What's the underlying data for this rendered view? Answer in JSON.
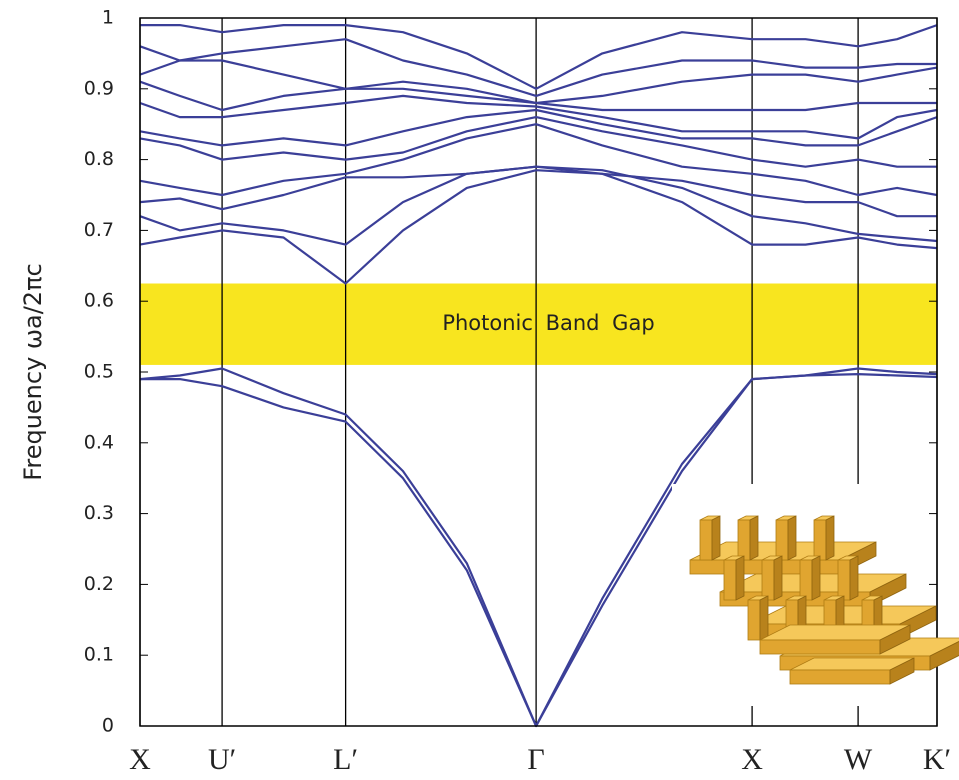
{
  "chart_data": {
    "type": "line",
    "ylabel": "Frequency ωa/2πc",
    "x": [
      0,
      0.05,
      0.103,
      0.18,
      0.258,
      0.33,
      0.41,
      0.497,
      0.58,
      0.68,
      0.768,
      0.835,
      0.901,
      0.95,
      1
    ],
    "xlim": [
      0,
      1
    ],
    "xticks": [
      {
        "value": 0,
        "label": "X"
      },
      {
        "value": 0.103,
        "label": "U′"
      },
      {
        "value": 0.258,
        "label": "L′"
      },
      {
        "value": 0.497,
        "label": "Γ"
      },
      {
        "value": 0.768,
        "label": "X"
      },
      {
        "value": 0.901,
        "label": "W"
      },
      {
        "value": 1,
        "label": "K′"
      }
    ],
    "ylim": [
      0,
      1
    ],
    "yticks": [
      0,
      0.1,
      0.2,
      0.3,
      0.4,
      0.5,
      0.6,
      0.7,
      0.8,
      0.9,
      1
    ],
    "xgrid": true,
    "color": "#3b3f98",
    "band_gap": {
      "range": [
        0.51,
        0.625
      ],
      "label": "Photonic Band Gap",
      "color": "#f8e51f"
    },
    "series": [
      {
        "values": [
          0.49,
          0.49,
          0.48,
          0.45,
          0.43,
          0.35,
          0.22,
          0,
          0.17,
          0.36,
          0.49,
          0.495,
          0.497,
          0.495,
          0.493
        ]
      },
      {
        "values": [
          0.49,
          0.495,
          0.505,
          0.47,
          0.44,
          0.36,
          0.23,
          0,
          0.18,
          0.37,
          0.49,
          0.495,
          0.505,
          0.5,
          0.497
        ]
      },
      {
        "values": [
          0.68,
          0.69,
          0.7,
          0.69,
          0.625,
          0.7,
          0.76,
          0.785,
          0.78,
          0.74,
          0.68,
          0.68,
          0.69,
          0.68,
          0.675
        ]
      },
      {
        "values": [
          0.72,
          0.7,
          0.71,
          0.7,
          0.68,
          0.74,
          0.78,
          0.79,
          0.785,
          0.76,
          0.72,
          0.71,
          0.695,
          0.69,
          0.685
        ]
      },
      {
        "values": [
          0.74,
          0.745,
          0.73,
          0.75,
          0.775,
          0.775,
          0.78,
          0.79,
          0.78,
          0.77,
          0.75,
          0.74,
          0.74,
          0.72,
          0.72
        ]
      },
      {
        "values": [
          0.77,
          0.76,
          0.75,
          0.77,
          0.78,
          0.8,
          0.83,
          0.85,
          0.82,
          0.79,
          0.78,
          0.77,
          0.75,
          0.76,
          0.75
        ]
      },
      {
        "values": [
          0.83,
          0.82,
          0.8,
          0.81,
          0.8,
          0.81,
          0.84,
          0.86,
          0.84,
          0.82,
          0.8,
          0.79,
          0.8,
          0.79,
          0.79
        ]
      },
      {
        "values": [
          0.84,
          0.83,
          0.82,
          0.83,
          0.82,
          0.84,
          0.86,
          0.87,
          0.85,
          0.83,
          0.83,
          0.82,
          0.82,
          0.84,
          0.86
        ]
      },
      {
        "values": [
          0.88,
          0.86,
          0.86,
          0.87,
          0.88,
          0.89,
          0.88,
          0.875,
          0.86,
          0.84,
          0.84,
          0.84,
          0.83,
          0.86,
          0.87
        ]
      },
      {
        "values": [
          0.91,
          0.89,
          0.87,
          0.89,
          0.9,
          0.9,
          0.89,
          0.88,
          0.87,
          0.87,
          0.87,
          0.87,
          0.88,
          0.88,
          0.88
        ]
      },
      {
        "values": [
          0.92,
          0.94,
          0.94,
          0.92,
          0.9,
          0.91,
          0.9,
          0.88,
          0.89,
          0.91,
          0.92,
          0.92,
          0.91,
          0.92,
          0.93
        ]
      },
      {
        "values": [
          0.96,
          0.94,
          0.95,
          0.96,
          0.97,
          0.94,
          0.92,
          0.89,
          0.92,
          0.94,
          0.94,
          0.93,
          0.93,
          0.935,
          0.935
        ]
      },
      {
        "values": [
          0.99,
          0.99,
          0.98,
          0.99,
          0.99,
          0.98,
          0.95,
          0.9,
          0.95,
          0.98,
          0.97,
          0.97,
          0.96,
          0.97,
          0.99
        ]
      }
    ]
  }
}
